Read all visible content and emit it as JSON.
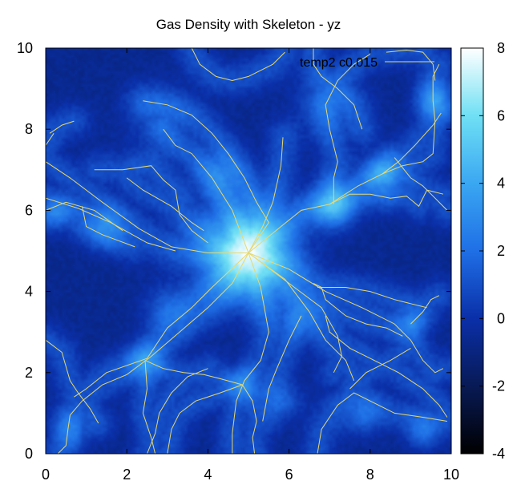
{
  "chart_data": {
    "type": "heatmap",
    "title": "Gas Density with Skeleton - yz",
    "xlabel": "",
    "ylabel": "",
    "xlim": [
      0,
      10
    ],
    "ylim": [
      0,
      10
    ],
    "x_ticks": [
      "0",
      "2",
      "4",
      "6",
      "8",
      "10"
    ],
    "y_ticks": [
      "0",
      "2",
      "4",
      "6",
      "8",
      "10"
    ],
    "colorbar": {
      "range": [
        -4,
        8
      ],
      "ticks": [
        "-4",
        "-2",
        "0",
        "2",
        "4",
        "6",
        "8"
      ],
      "colors": [
        "#000000",
        "#081a55",
        "#0a2fa8",
        "#1f6fe6",
        "#3aa7f2",
        "#6fe0f4",
        "#ffffff"
      ]
    },
    "background_level": -0.6,
    "nodes": [
      {
        "x": 5.0,
        "y": 4.95,
        "v": 7.0,
        "r": 1.1
      },
      {
        "x": 7.1,
        "y": 6.15,
        "v": 4.2,
        "r": 0.55
      },
      {
        "x": 8.3,
        "y": 6.9,
        "v": 3.2,
        "r": 0.5
      },
      {
        "x": 2.45,
        "y": 2.3,
        "v": 2.6,
        "r": 0.45
      },
      {
        "x": 4.85,
        "y": 1.7,
        "v": 2.0,
        "r": 0.4
      },
      {
        "x": 9.6,
        "y": 8.7,
        "v": 2.6,
        "r": 0.45
      },
      {
        "x": 1.5,
        "y": 5.6,
        "v": 2.0,
        "r": 0.5
      },
      {
        "x": 0.3,
        "y": 5.9,
        "v": 1.8,
        "r": 0.4
      },
      {
        "x": 9.0,
        "y": 3.2,
        "v": 1.6,
        "r": 0.4
      },
      {
        "x": 9.3,
        "y": 0.5,
        "v": 1.8,
        "r": 0.4
      },
      {
        "x": 7.8,
        "y": 0.9,
        "v": 1.6,
        "r": 0.45
      },
      {
        "x": 4.3,
        "y": 6.9,
        "v": 1.8,
        "r": 0.6
      },
      {
        "x": 3.0,
        "y": 3.6,
        "v": 1.4,
        "r": 0.6
      },
      {
        "x": 6.3,
        "y": 3.4,
        "v": 1.2,
        "r": 0.6
      },
      {
        "x": 0.6,
        "y": 0.6,
        "v": 1.4,
        "r": 0.45
      },
      {
        "x": 5.9,
        "y": 1.3,
        "v": 1.3,
        "r": 0.45
      },
      {
        "x": 2.8,
        "y": 8.2,
        "v": 0.7,
        "r": 0.9
      },
      {
        "x": 6.9,
        "y": 8.6,
        "v": 1.0,
        "r": 0.8
      }
    ],
    "series": [
      {
        "name": "temp2 c0.015",
        "color": "#e8d870",
        "segments": [
          [
            [
              0.0,
              7.2
            ],
            [
              0.6,
              6.8
            ],
            [
              1.4,
              6.2
            ],
            [
              2.3,
              5.55
            ],
            [
              3.1,
              5.1
            ],
            [
              4.0,
              4.95
            ],
            [
              5.0,
              4.95
            ]
          ],
          [
            [
              0.0,
              6.3
            ],
            [
              0.8,
              6.05
            ],
            [
              1.6,
              5.7
            ],
            [
              2.5,
              5.2
            ],
            [
              3.2,
              5.0
            ]
          ],
          [
            [
              0.0,
              6.0
            ],
            [
              0.5,
              6.2
            ],
            [
              1.2,
              6.0
            ],
            [
              1.9,
              5.5
            ]
          ],
          [
            [
              0.9,
              6.1
            ],
            [
              1.0,
              5.6
            ],
            [
              1.4,
              5.4
            ],
            [
              1.8,
              5.25
            ],
            [
              2.2,
              5.1
            ]
          ],
          [
            [
              1.2,
              7.0
            ],
            [
              1.9,
              7.0
            ],
            [
              2.6,
              7.1
            ],
            [
              2.9,
              6.75
            ],
            [
              3.2,
              6.5
            ],
            [
              3.3,
              5.9
            ],
            [
              3.6,
              5.5
            ],
            [
              4.0,
              5.2
            ]
          ],
          [
            [
              2.0,
              6.8
            ],
            [
              2.4,
              6.5
            ],
            [
              3.1,
              6.1
            ],
            [
              3.6,
              5.7
            ],
            [
              3.9,
              5.5
            ]
          ],
          [
            [
              5.0,
              4.95
            ],
            [
              5.35,
              5.6
            ],
            [
              5.6,
              6.2
            ],
            [
              5.8,
              7.1
            ],
            [
              5.85,
              7.8
            ]
          ],
          [
            [
              5.0,
              4.95
            ],
            [
              4.6,
              6.0
            ],
            [
              4.1,
              6.8
            ],
            [
              3.6,
              7.4
            ],
            [
              3.2,
              7.6
            ],
            [
              2.9,
              8.0
            ]
          ],
          [
            [
              2.4,
              8.7
            ],
            [
              3.0,
              8.6
            ],
            [
              3.6,
              8.35
            ],
            [
              4.1,
              7.9
            ],
            [
              4.5,
              7.4
            ],
            [
              4.9,
              6.8
            ],
            [
              5.2,
              6.2
            ],
            [
              5.5,
              5.7
            ],
            [
              5.0,
              4.95
            ]
          ],
          [
            [
              5.0,
              4.95
            ],
            [
              5.8,
              5.6
            ],
            [
              6.3,
              6.0
            ],
            [
              7.0,
              6.15
            ],
            [
              7.7,
              6.6
            ],
            [
              8.3,
              6.9
            ],
            [
              8.7,
              7.2
            ],
            [
              9.1,
              7.6
            ],
            [
              9.55,
              8.1
            ],
            [
              9.75,
              8.4
            ]
          ],
          [
            [
              7.1,
              6.15
            ],
            [
              7.1,
              6.8
            ],
            [
              7.2,
              7.2
            ],
            [
              7.0,
              8.0
            ],
            [
              6.9,
              8.6
            ],
            [
              7.2,
              9.2
            ],
            [
              7.6,
              9.6
            ],
            [
              8.0,
              9.85
            ]
          ],
          [
            [
              6.6,
              10.0
            ],
            [
              6.6,
              9.6
            ],
            [
              6.8,
              9.3
            ],
            [
              7.2,
              9.0
            ],
            [
              7.6,
              8.6
            ],
            [
              7.8,
              8.0
            ]
          ],
          [
            [
              8.3,
              6.9
            ],
            [
              8.8,
              7.1
            ],
            [
              9.3,
              7.2
            ],
            [
              9.55,
              7.4
            ],
            [
              9.6,
              8.2
            ],
            [
              9.55,
              8.7
            ],
            [
              9.55,
              9.3
            ],
            [
              9.7,
              9.6
            ]
          ],
          [
            [
              7.0,
              6.15
            ],
            [
              7.5,
              6.4
            ],
            [
              8.0,
              6.4
            ],
            [
              8.5,
              6.3
            ],
            [
              8.9,
              6.35
            ],
            [
              9.2,
              6.1
            ],
            [
              9.4,
              6.5
            ],
            [
              9.8,
              6.4
            ]
          ],
          [
            [
              8.6,
              7.3
            ],
            [
              9.0,
              6.8
            ],
            [
              9.3,
              6.6
            ],
            [
              9.6,
              6.3
            ],
            [
              9.9,
              6.0
            ]
          ],
          [
            [
              5.0,
              4.95
            ],
            [
              4.6,
              4.2
            ],
            [
              4.0,
              3.6
            ],
            [
              3.3,
              3.0
            ],
            [
              2.6,
              2.4
            ],
            [
              2.0,
              1.95
            ],
            [
              1.4,
              1.7
            ],
            [
              0.9,
              1.3
            ],
            [
              0.6,
              0.95
            ]
          ],
          [
            [
              0.0,
              2.8
            ],
            [
              0.4,
              2.5
            ],
            [
              0.6,
              1.8
            ],
            [
              0.8,
              1.5
            ],
            [
              1.1,
              1.1
            ],
            [
              1.3,
              0.75
            ]
          ],
          [
            [
              5.0,
              4.95
            ],
            [
              4.1,
              4.1
            ],
            [
              3.6,
              3.6
            ],
            [
              3.0,
              3.1
            ],
            [
              2.5,
              2.35
            ],
            [
              1.5,
              2.0
            ],
            [
              1.0,
              1.6
            ],
            [
              0.7,
              1.4
            ]
          ],
          [
            [
              2.45,
              2.3
            ],
            [
              2.9,
              2.1
            ],
            [
              3.4,
              2.0
            ],
            [
              3.9,
              1.95
            ],
            [
              4.3,
              1.85
            ],
            [
              4.85,
              1.7
            ]
          ],
          [
            [
              2.45,
              2.3
            ],
            [
              2.5,
              1.6
            ],
            [
              2.4,
              1.0
            ],
            [
              2.6,
              0.4
            ],
            [
              2.7,
              0.0
            ]
          ],
          [
            [
              5.0,
              4.95
            ],
            [
              5.3,
              4.1
            ],
            [
              5.5,
              3.0
            ],
            [
              5.3,
              2.3
            ],
            [
              4.9,
              1.8
            ],
            [
              4.7,
              1.3
            ],
            [
              4.6,
              0.5
            ],
            [
              4.6,
              0.0
            ]
          ],
          [
            [
              4.85,
              1.7
            ],
            [
              5.1,
              1.3
            ],
            [
              5.2,
              0.8
            ],
            [
              5.1,
              0.4
            ],
            [
              5.15,
              0.0
            ]
          ],
          [
            [
              3.0,
              0.0
            ],
            [
              3.1,
              0.6
            ],
            [
              3.3,
              1.0
            ],
            [
              3.7,
              1.3
            ],
            [
              4.3,
              1.5
            ],
            [
              4.85,
              1.7
            ]
          ],
          [
            [
              5.0,
              4.95
            ],
            [
              6.0,
              4.2
            ],
            [
              6.8,
              3.6
            ],
            [
              7.2,
              2.9
            ],
            [
              7.3,
              2.4
            ],
            [
              7.1,
              2.0
            ]
          ],
          [
            [
              5.0,
              4.95
            ],
            [
              5.9,
              4.3
            ],
            [
              6.5,
              3.5
            ],
            [
              6.9,
              2.8
            ],
            [
              7.4,
              2.3
            ],
            [
              7.6,
              1.8
            ]
          ],
          [
            [
              6.3,
              3.4
            ],
            [
              6.0,
              2.8
            ],
            [
              5.7,
              2.1
            ],
            [
              5.5,
              1.6
            ],
            [
              5.35,
              0.8
            ]
          ],
          [
            [
              5.0,
              4.95
            ],
            [
              6.0,
              4.55
            ],
            [
              6.9,
              4.0
            ],
            [
              7.8,
              3.6
            ],
            [
              8.6,
              3.2
            ],
            [
              9.0,
              2.8
            ],
            [
              9.3,
              2.3
            ],
            [
              9.6,
              2.0
            ],
            [
              9.8,
              2.1
            ]
          ],
          [
            [
              6.7,
              0.0
            ],
            [
              6.8,
              0.6
            ],
            [
              7.2,
              1.2
            ],
            [
              7.6,
              1.5
            ],
            [
              8.0,
              1.3
            ],
            [
              8.6,
              1.0
            ],
            [
              9.3,
              0.9
            ],
            [
              9.9,
              0.8
            ]
          ],
          [
            [
              7.5,
              1.6
            ],
            [
              7.9,
              2.0
            ],
            [
              8.5,
              2.3
            ],
            [
              9.0,
              2.6
            ]
          ],
          [
            [
              6.7,
              4.1
            ],
            [
              7.4,
              4.1
            ],
            [
              8.0,
              4.0
            ],
            [
              8.6,
              3.8
            ],
            [
              9.0,
              3.7
            ],
            [
              9.4,
              3.6
            ]
          ],
          [
            [
              6.6,
              4.2
            ],
            [
              6.8,
              4.1
            ],
            [
              6.9,
              3.8
            ],
            [
              7.4,
              3.4
            ],
            [
              7.9,
              3.2
            ],
            [
              8.4,
              3.1
            ],
            [
              8.8,
              2.9
            ]
          ],
          [
            [
              6.9,
              3.4
            ],
            [
              7.0,
              3.0
            ],
            [
              7.5,
              2.6
            ],
            [
              8.1,
              2.3
            ],
            [
              8.7,
              2.0
            ],
            [
              9.3,
              1.6
            ],
            [
              9.7,
              1.2
            ],
            [
              9.9,
              0.9
            ]
          ],
          [
            [
              0.1,
              7.9
            ],
            [
              0.4,
              8.1
            ],
            [
              0.7,
              8.2
            ]
          ],
          [
            [
              0.0,
              7.6
            ],
            [
              0.2,
              7.9
            ]
          ],
          [
            [
              3.6,
              10.0
            ],
            [
              3.8,
              9.6
            ],
            [
              4.2,
              9.3
            ],
            [
              4.6,
              9.2
            ],
            [
              5.0,
              9.3
            ],
            [
              5.6,
              9.6
            ],
            [
              5.9,
              9.9
            ]
          ],
          [
            [
              8.4,
              9.9
            ],
            [
              8.9,
              9.95
            ],
            [
              9.3,
              9.9
            ],
            [
              9.55,
              9.6
            ],
            [
              9.6,
              9.2
            ]
          ],
          [
            [
              2.5,
              0.0
            ],
            [
              2.7,
              0.5
            ],
            [
              2.8,
              1.0
            ],
            [
              3.1,
              1.5
            ],
            [
              3.5,
              1.9
            ],
            [
              4.0,
              2.1
            ]
          ],
          [
            [
              0.6,
              0.95
            ],
            [
              0.55,
              0.6
            ],
            [
              0.5,
              0.2
            ],
            [
              0.3,
              0.0
            ]
          ],
          [
            [
              9.0,
              3.2
            ],
            [
              9.3,
              3.5
            ],
            [
              9.5,
              3.8
            ],
            [
              9.7,
              3.9
            ]
          ]
        ]
      }
    ]
  }
}
